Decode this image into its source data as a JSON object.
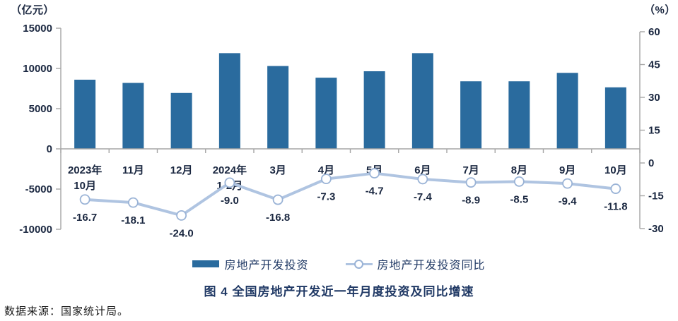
{
  "chart_data": {
    "type": "bar+line",
    "title": "图 4 全国房地产开发近一年月度投资及同比增速",
    "categories": [
      [
        "2023年",
        "10月"
      ],
      [
        "11月"
      ],
      [
        "12月"
      ],
      [
        "2024年",
        "1-2月"
      ],
      [
        "3月"
      ],
      [
        "4月"
      ],
      [
        "5月"
      ],
      [
        "6月"
      ],
      [
        "7月"
      ],
      [
        "8月"
      ],
      [
        "9月"
      ],
      [
        "10月"
      ]
    ],
    "series": [
      {
        "name": "房地产开发投资",
        "type": "bar",
        "axis": "left",
        "unit": "亿元",
        "values": [
          8600,
          8200,
          6950,
          11900,
          10300,
          8850,
          9650,
          11900,
          8400,
          8400,
          9450,
          7650
        ]
      },
      {
        "name": "房地产开发投资同比",
        "type": "line",
        "axis": "right",
        "unit": "%",
        "values": [
          -16.7,
          -18.1,
          -24.0,
          -9.0,
          -16.8,
          -7.3,
          -4.7,
          -7.4,
          -8.9,
          -8.5,
          -9.4,
          -11.8
        ]
      }
    ],
    "left_axis": {
      "unit_label": "（亿元）",
      "ticks": [
        15000,
        10000,
        5000,
        0,
        -5000,
        -10000
      ],
      "range": [
        -10000,
        15000
      ]
    },
    "right_axis": {
      "unit_label": "（%）",
      "ticks": [
        60,
        45,
        30,
        15,
        0,
        -15,
        -30
      ],
      "range": [
        -30,
        60
      ]
    },
    "grid": false,
    "legend_position": "bottom"
  },
  "legend": {
    "items": [
      {
        "label": "房地产开发投资",
        "marker": "bar-swatch"
      },
      {
        "label": "房地产开发投资同比",
        "marker": "line-circle-marker"
      }
    ]
  },
  "source": "数据来源：国家统计局。",
  "colors": {
    "bar": "#2A6B9E",
    "line": "#AFC4E1",
    "marker_stroke": "#9AB3D6",
    "marker_fill": "#FFFFFF",
    "axis_line": "#A6A6A6",
    "text": "#1A2740",
    "navy": "#1F3864",
    "background": "#FFFFFF"
  }
}
